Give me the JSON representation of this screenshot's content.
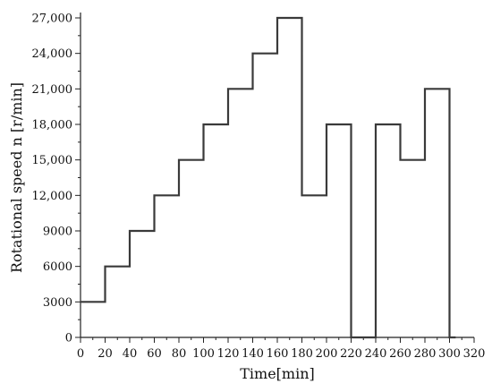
{
  "chart_data": {
    "type": "line",
    "title": "",
    "xlabel": "Time[min]",
    "ylabel": "Rotational speed n [r/min]",
    "xlim": [
      0,
      320
    ],
    "ylim": [
      0,
      27000
    ],
    "x_ticks": [
      0,
      20,
      40,
      60,
      80,
      100,
      120,
      140,
      160,
      180,
      200,
      220,
      240,
      260,
      280,
      300,
      320
    ],
    "x_tick_labels": [
      "0",
      "20",
      "40",
      "60",
      "80",
      "100",
      "120",
      "140",
      "160",
      "180",
      "200",
      "220",
      "240",
      "260",
      "280",
      "300",
      "320"
    ],
    "y_ticks": [
      0,
      3000,
      6000,
      9000,
      12000,
      15000,
      18000,
      21000,
      24000,
      27000
    ],
    "y_tick_labels": [
      "0",
      "3000",
      "6000",
      "9000",
      "12,000",
      "15,000",
      "18,000",
      "21,000",
      "24,000",
      "27,000"
    ],
    "grid": false,
    "line_color": "#3a3a3a",
    "series": [
      {
        "step": "post",
        "x": [
          0,
          20,
          40,
          60,
          80,
          100,
          120,
          140,
          160,
          180,
          200,
          220,
          240,
          260,
          280,
          300,
          305
        ],
        "y": [
          3000,
          6000,
          9000,
          12000,
          15000,
          18000,
          21000,
          24000,
          27000,
          12000,
          18000,
          0,
          18000,
          15000,
          21000,
          0,
          0
        ]
      }
    ]
  }
}
